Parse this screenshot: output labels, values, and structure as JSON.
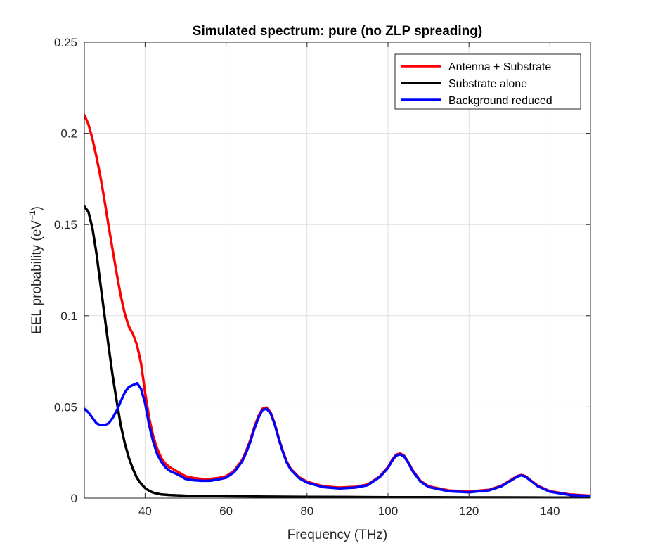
{
  "chart_data": {
    "type": "line",
    "title": "Simulated spectrum: pure (no ZLP spreading)",
    "xlabel": "Frequency (THz)",
    "ylabel": {
      "main": "EEL probability (eV",
      "superscript": "−1",
      "close": ")"
    },
    "xlim": [
      25,
      150
    ],
    "ylim": [
      0,
      0.25
    ],
    "xticks": [
      40,
      60,
      80,
      100,
      120,
      140
    ],
    "xtick_labels": [
      "40",
      "60",
      "80",
      "100",
      "120",
      "140"
    ],
    "yticks": [
      0,
      0.05,
      0.1,
      0.15,
      0.2,
      0.25
    ],
    "ytick_labels": [
      "0",
      "0.05",
      "0.1",
      "0.15",
      "0.2",
      "0.25"
    ],
    "grid": true,
    "legend_position": "top-right",
    "series": [
      {
        "name": "Antenna + Substrate",
        "color": "#ff0000",
        "x": [
          25,
          26,
          27,
          28,
          29,
          30,
          31,
          32,
          33,
          34,
          35,
          36,
          37,
          38,
          39,
          40,
          41,
          42,
          43,
          44,
          45,
          46,
          48,
          50,
          52,
          54,
          56,
          58,
          60,
          62,
          64,
          65,
          66,
          67,
          68,
          69,
          70,
          71,
          72,
          73,
          74,
          75,
          76,
          78,
          80,
          84,
          88,
          92,
          95,
          98,
          100,
          101,
          102,
          103,
          104,
          105,
          106,
          108,
          110,
          115,
          120,
          125,
          128,
          130,
          132,
          133,
          134,
          135,
          137,
          140,
          145,
          150
        ],
        "y": [
          0.21,
          0.205,
          0.197,
          0.187,
          0.176,
          0.163,
          0.149,
          0.136,
          0.123,
          0.111,
          0.101,
          0.094,
          0.09,
          0.084,
          0.074,
          0.058,
          0.044,
          0.034,
          0.027,
          0.022,
          0.019,
          0.017,
          0.0145,
          0.012,
          0.011,
          0.0105,
          0.0105,
          0.011,
          0.012,
          0.015,
          0.021,
          0.026,
          0.032,
          0.039,
          0.045,
          0.049,
          0.0497,
          0.047,
          0.041,
          0.033,
          0.026,
          0.02,
          0.016,
          0.0115,
          0.009,
          0.0065,
          0.0058,
          0.0062,
          0.0075,
          0.012,
          0.017,
          0.021,
          0.0238,
          0.0245,
          0.0232,
          0.0198,
          0.0155,
          0.0095,
          0.0065,
          0.0042,
          0.0036,
          0.0046,
          0.0068,
          0.0095,
          0.0122,
          0.0127,
          0.012,
          0.0102,
          0.0068,
          0.0038,
          0.002,
          0.0013
        ]
      },
      {
        "name": "Substrate alone",
        "color": "#000000",
        "x": [
          25,
          26,
          27,
          28,
          29,
          30,
          31,
          32,
          33,
          34,
          35,
          36,
          37,
          38,
          39,
          40,
          41,
          42,
          43,
          44,
          46,
          50,
          55,
          60,
          70,
          80,
          90,
          100,
          110,
          120,
          130,
          140,
          150
        ],
        "y": [
          0.16,
          0.157,
          0.148,
          0.134,
          0.117,
          0.1,
          0.083,
          0.067,
          0.053,
          0.04,
          0.03,
          0.022,
          0.016,
          0.011,
          0.008,
          0.0055,
          0.004,
          0.003,
          0.0025,
          0.002,
          0.0017,
          0.0013,
          0.0011,
          0.001,
          0.0008,
          0.0007,
          0.0006,
          0.0005,
          0.0005,
          0.0004,
          0.0004,
          0.0003,
          0.0003
        ]
      },
      {
        "name": "Background reduced",
        "color": "#0000ff",
        "x": [
          25,
          26,
          27,
          28,
          29,
          30,
          31,
          32,
          33,
          34,
          35,
          36,
          37,
          38,
          39,
          40,
          41,
          42,
          43,
          44,
          45,
          46,
          48,
          50,
          52,
          54,
          56,
          58,
          60,
          62,
          64,
          65,
          66,
          67,
          68,
          69,
          70,
          71,
          72,
          73,
          74,
          75,
          76,
          78,
          80,
          84,
          88,
          92,
          95,
          98,
          100,
          101,
          102,
          103,
          104,
          105,
          106,
          108,
          110,
          115,
          120,
          125,
          128,
          130,
          132,
          133,
          134,
          135,
          137,
          140,
          145,
          150
        ],
        "y": [
          0.049,
          0.047,
          0.044,
          0.041,
          0.04,
          0.04,
          0.041,
          0.044,
          0.048,
          0.053,
          0.058,
          0.061,
          0.062,
          0.063,
          0.06,
          0.052,
          0.04,
          0.031,
          0.024,
          0.02,
          0.017,
          0.015,
          0.013,
          0.0105,
          0.0098,
          0.0095,
          0.0095,
          0.0102,
          0.0112,
          0.0142,
          0.0202,
          0.025,
          0.031,
          0.038,
          0.044,
          0.0483,
          0.049,
          0.0465,
          0.0405,
          0.0325,
          0.0255,
          0.0195,
          0.0155,
          0.011,
          0.0085,
          0.006,
          0.0053,
          0.0058,
          0.0071,
          0.0116,
          0.0165,
          0.0205,
          0.0233,
          0.024,
          0.0228,
          0.0194,
          0.0151,
          0.0091,
          0.0061,
          0.0038,
          0.0032,
          0.0043,
          0.0065,
          0.0092,
          0.0119,
          0.0125,
          0.0117,
          0.0099,
          0.0065,
          0.0035,
          0.0017,
          0.0011
        ]
      }
    ]
  }
}
